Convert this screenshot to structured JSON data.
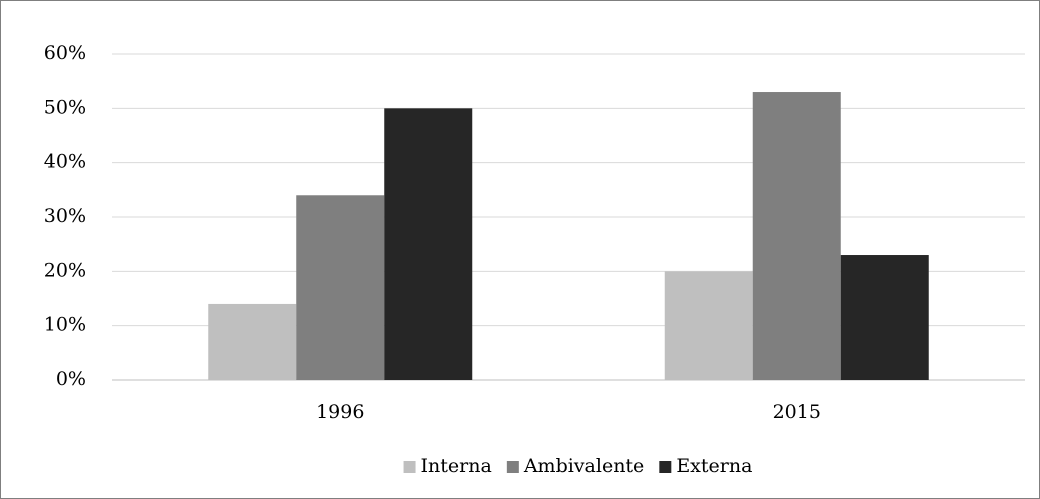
{
  "chart_data": {
    "type": "bar",
    "categories": [
      "1996",
      "2015"
    ],
    "series": [
      {
        "name": "Interna",
        "color": "#bfbfbf",
        "values": [
          14,
          20
        ]
      },
      {
        "name": "Ambivalente",
        "color": "#7f7f7f",
        "values": [
          34,
          53
        ]
      },
      {
        "name": "Externa",
        "color": "#262626",
        "values": [
          50,
          23
        ]
      }
    ],
    "ylim": [
      0,
      60
    ],
    "yticks": [
      {
        "value": 0,
        "label": "0%"
      },
      {
        "value": 10,
        "label": "10%"
      },
      {
        "value": 20,
        "label": "20%"
      },
      {
        "value": 30,
        "label": "30%"
      },
      {
        "value": 40,
        "label": "40%"
      },
      {
        "value": 50,
        "label": "50%"
      },
      {
        "value": 60,
        "label": "60%"
      }
    ],
    "grid": true,
    "legend": "bottom"
  }
}
